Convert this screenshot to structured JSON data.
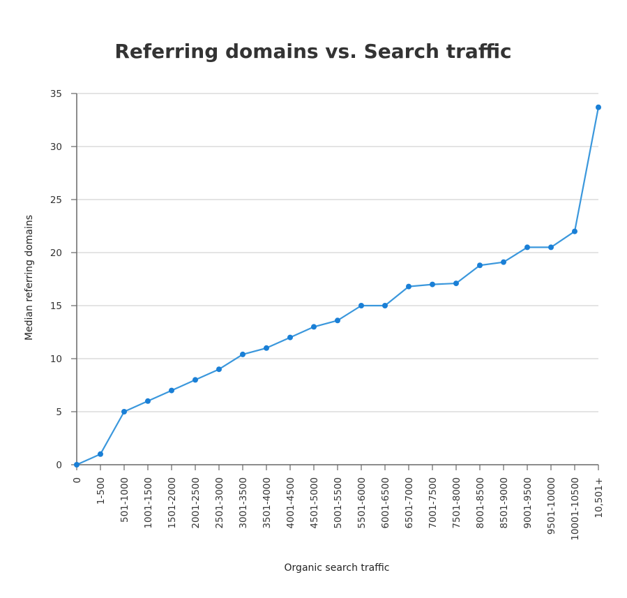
{
  "chart_data": {
    "type": "line",
    "title": "Referring domains vs. Search traffic",
    "xlabel": "Organic search traffic",
    "ylabel": "Median referring domains",
    "ylim": [
      0,
      35
    ],
    "yticks": [
      0,
      5,
      10,
      15,
      20,
      25,
      30,
      35
    ],
    "grid": true,
    "categories": [
      "0",
      "1-500",
      "501-1000",
      "1001-1500",
      "1501-2000",
      "2001-2500",
      "2501-3000",
      "3001-3500",
      "3501-4000",
      "4001-4500",
      "4501-5000",
      "5001-5500",
      "5501-6000",
      "6001-6500",
      "6501-7000",
      "7001-7500",
      "7501-8000",
      "8001-8500",
      "8501-9000",
      "9001-9500",
      "9501-10000",
      "10001-10500",
      "10,501+"
    ],
    "series": [
      {
        "name": "Median referring domains",
        "color": "#3a97dc",
        "marker_color": "#1a7fd6",
        "values": [
          0,
          1,
          5,
          6,
          7,
          8,
          9,
          10.4,
          11,
          12,
          13,
          13.6,
          15,
          15,
          16.8,
          17,
          17.1,
          18.8,
          19.1,
          20.5,
          20.5,
          22,
          33.7
        ]
      }
    ]
  }
}
